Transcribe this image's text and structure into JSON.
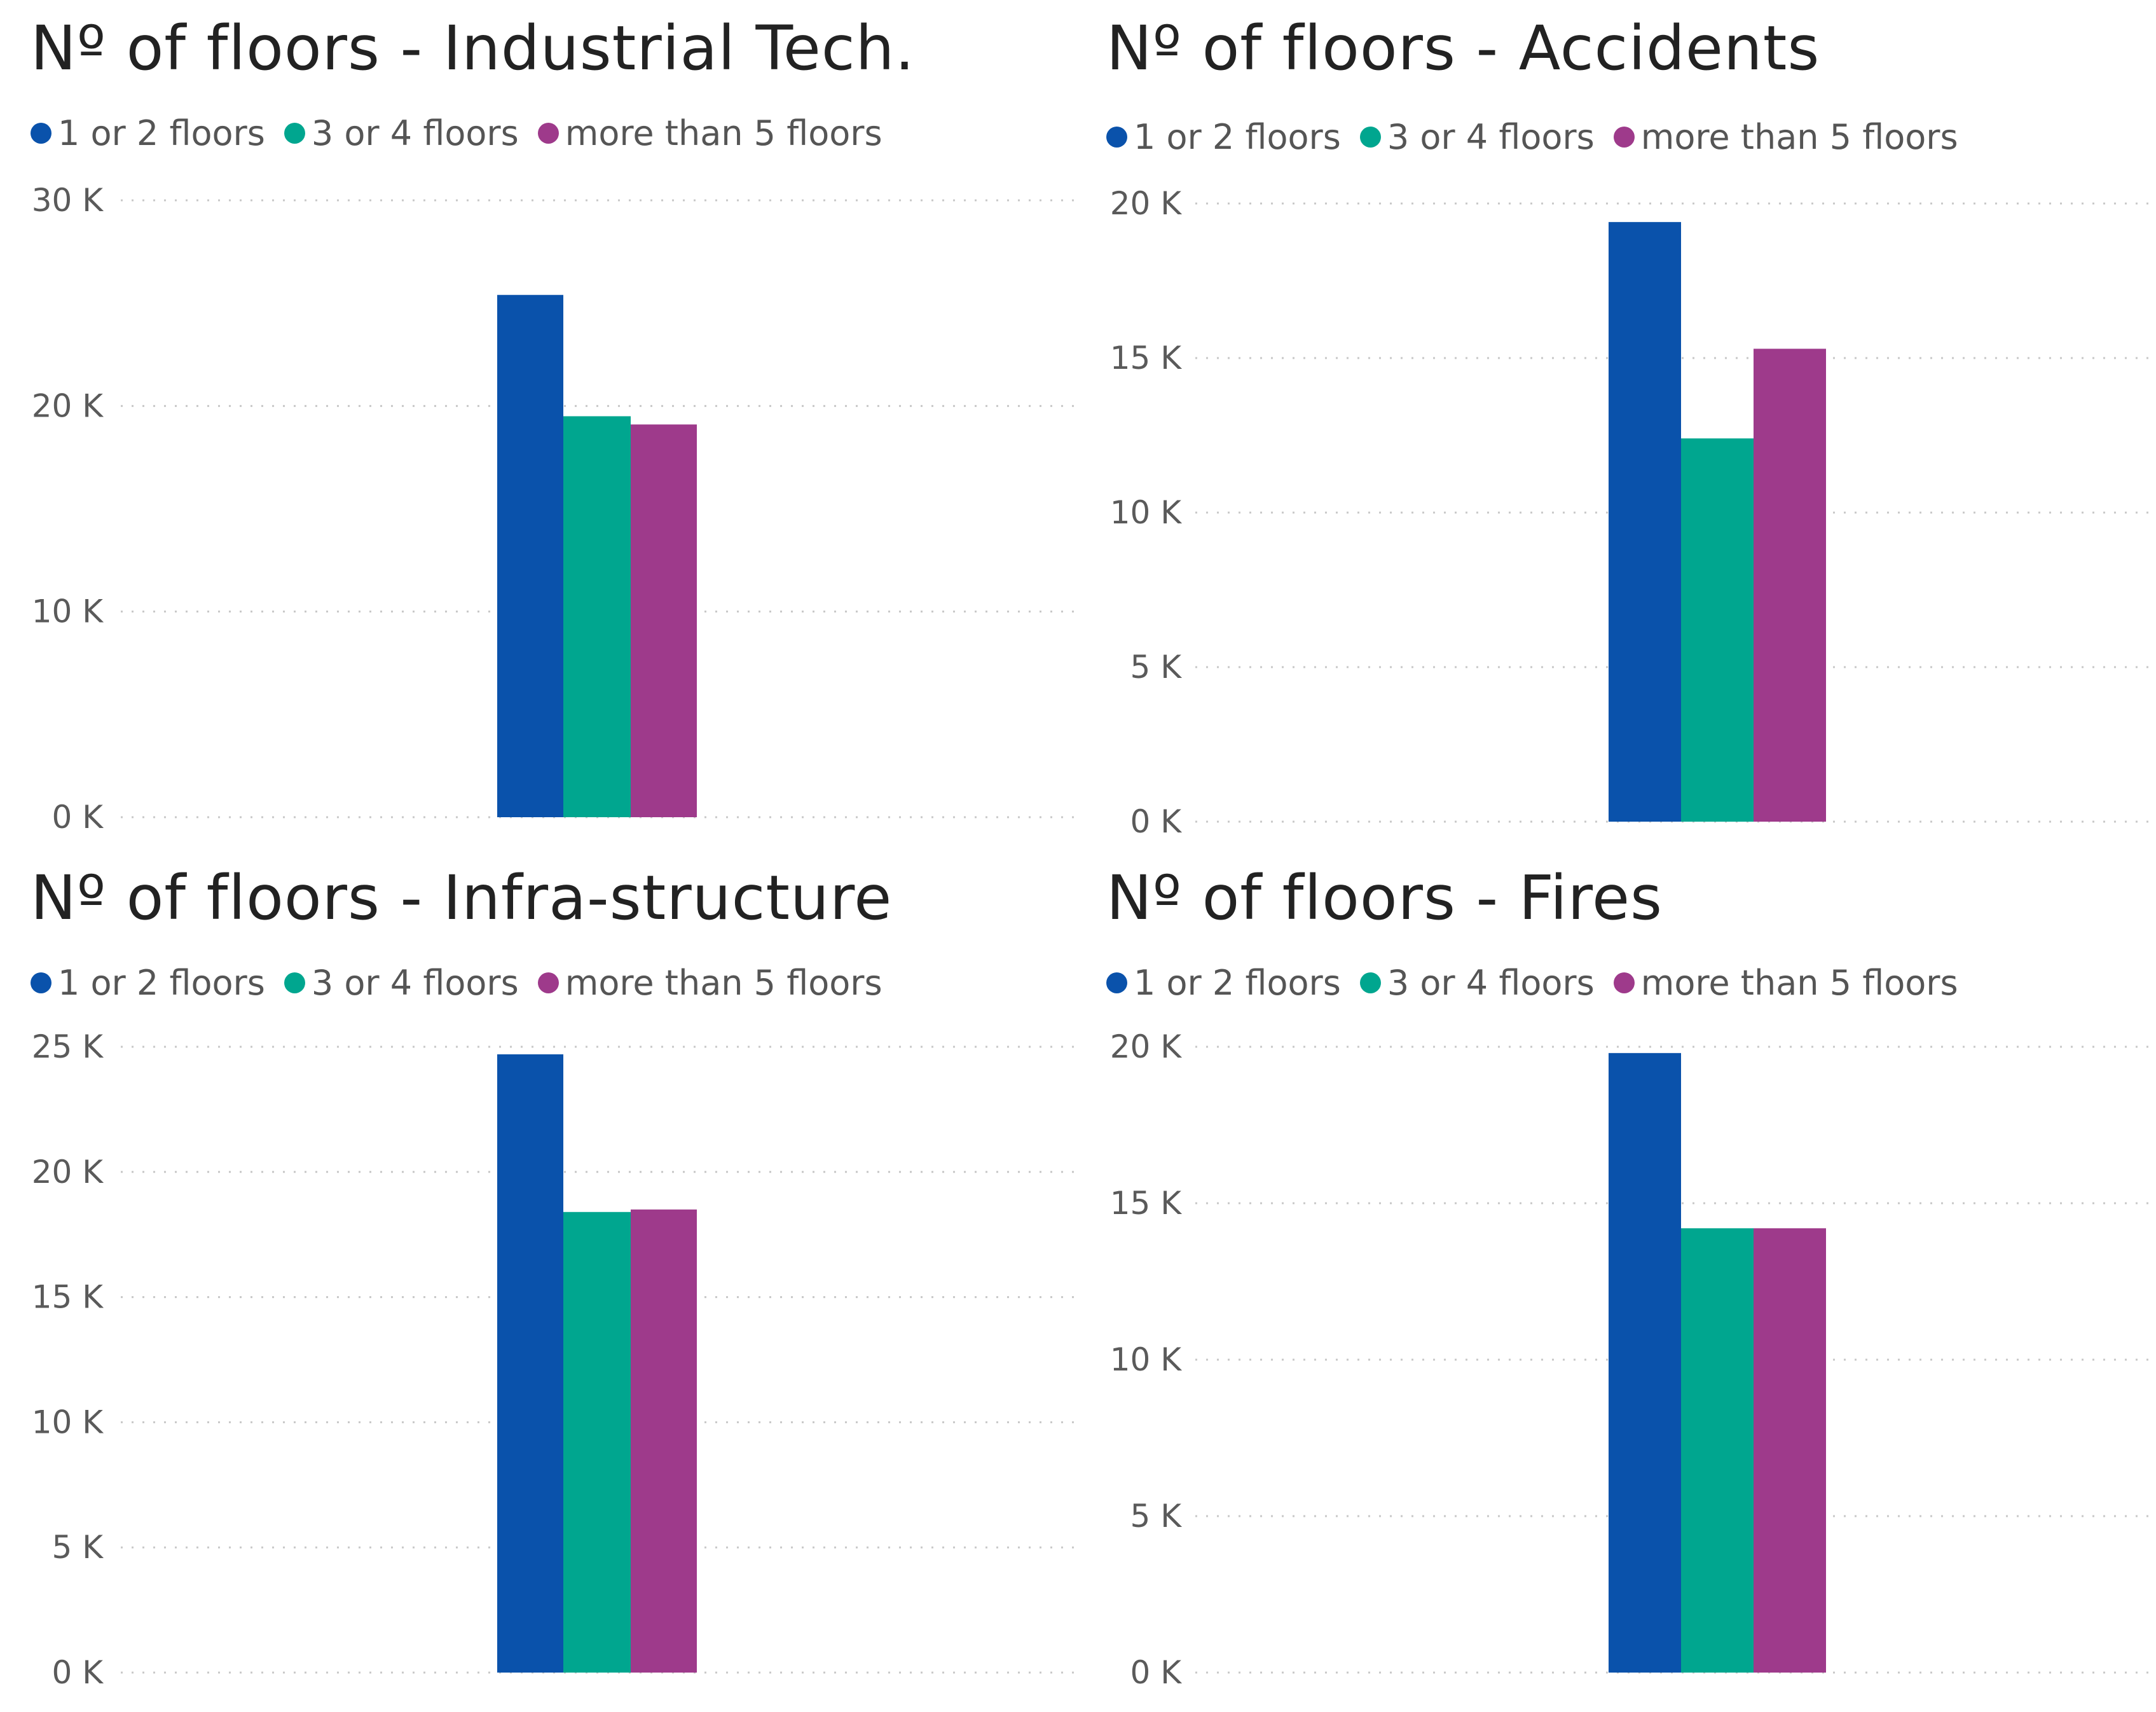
{
  "colors": {
    "series_1": "#0a52ab",
    "series_2": "#00a68f",
    "series_3": "#9e3a8b",
    "grid": "#c8c8c8"
  },
  "chart_data": [
    {
      "type": "bar",
      "title": "Nº of floors - Industrial Tech.",
      "categories": [
        ""
      ],
      "series": [
        {
          "name": "1 or 2 floors",
          "values": [
            25400
          ]
        },
        {
          "name": "3 or 4 floors",
          "values": [
            19500
          ]
        },
        {
          "name": "more than 5 floors",
          "values": [
            19100
          ]
        }
      ],
      "ylim": [
        0,
        30000
      ],
      "yticks": [
        0,
        10000,
        20000,
        30000
      ],
      "ytick_labels": [
        "0 K",
        "10 K",
        "20 K",
        "30 K"
      ],
      "xlabel": "",
      "ylabel": "",
      "grid": true,
      "legend": "top-left"
    },
    {
      "type": "bar",
      "title": "Nº of floors - Accidents",
      "categories": [
        ""
      ],
      "series": [
        {
          "name": "1 or 2 floors",
          "values": [
            19400
          ]
        },
        {
          "name": "3 or 4 floors",
          "values": [
            12400
          ]
        },
        {
          "name": "more than 5 floors",
          "values": [
            15300
          ]
        }
      ],
      "ylim": [
        0,
        20000
      ],
      "yticks": [
        0,
        5000,
        10000,
        15000,
        20000
      ],
      "ytick_labels": [
        "0 K",
        "5 K",
        "10 K",
        "15 K",
        "20 K"
      ],
      "xlabel": "",
      "ylabel": "",
      "grid": true,
      "legend": "top-left"
    },
    {
      "type": "bar",
      "title": "Nº of floors - Infra-structure",
      "categories": [
        ""
      ],
      "series": [
        {
          "name": "1 or 2 floors",
          "values": [
            24700
          ]
        },
        {
          "name": "3 or 4 floors",
          "values": [
            18400
          ]
        },
        {
          "name": "more than 5 floors",
          "values": [
            18500
          ]
        }
      ],
      "ylim": [
        0,
        25000
      ],
      "yticks": [
        0,
        5000,
        10000,
        15000,
        20000,
        25000
      ],
      "ytick_labels": [
        "0 K",
        "5 K",
        "10 K",
        "15 K",
        "20 K",
        "25 K"
      ],
      "xlabel": "",
      "ylabel": "",
      "grid": true,
      "legend": "top-left"
    },
    {
      "type": "bar",
      "title": "Nº of floors - Fires",
      "categories": [
        ""
      ],
      "series": [
        {
          "name": "1 or 2 floors",
          "values": [
            19800
          ]
        },
        {
          "name": "3 or 4 floors",
          "values": [
            14200
          ]
        },
        {
          "name": "more than 5 floors",
          "values": [
            14200
          ]
        }
      ],
      "ylim": [
        0,
        20000
      ],
      "yticks": [
        0,
        5000,
        10000,
        15000,
        20000
      ],
      "ytick_labels": [
        "0 K",
        "5 K",
        "10 K",
        "15 K",
        "20 K"
      ],
      "xlabel": "",
      "ylabel": "",
      "grid": true,
      "legend": "top-left"
    }
  ]
}
